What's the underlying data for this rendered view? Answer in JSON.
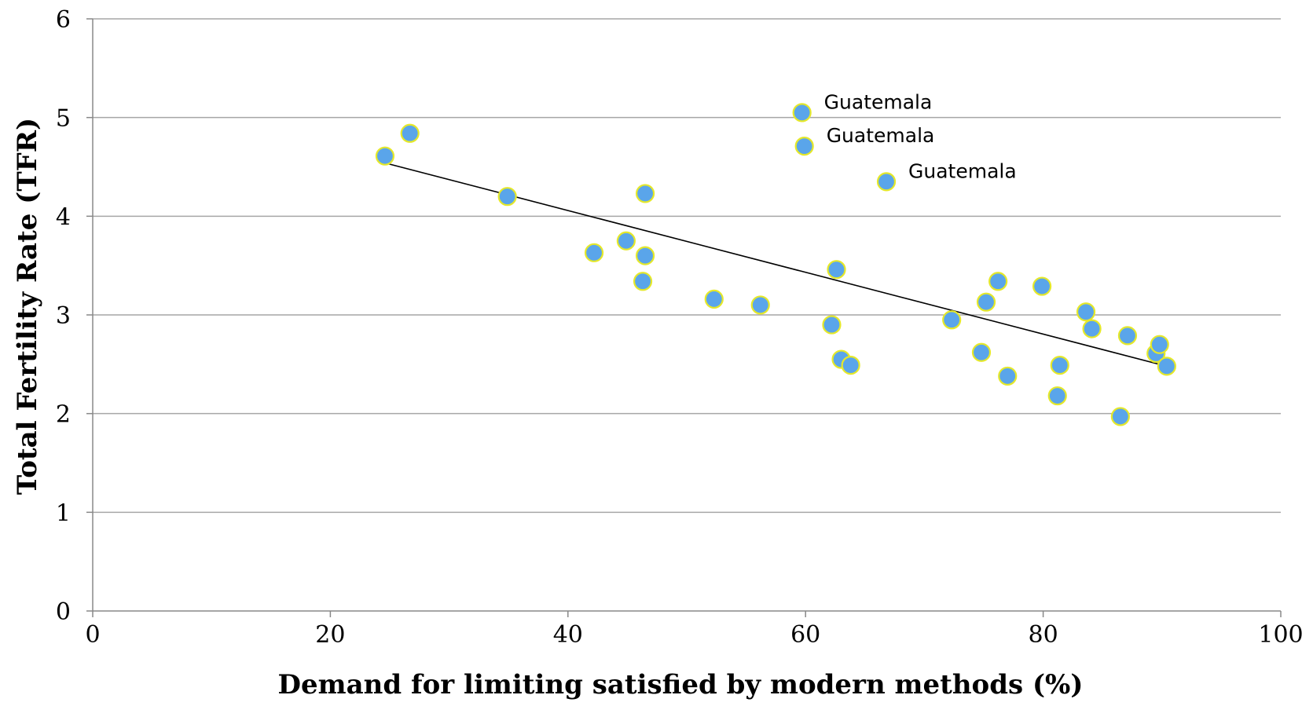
{
  "chart_data": {
    "type": "scatter",
    "xlabel": "Demand for limiting satisfied by modern methods (%)",
    "ylabel": "Total Fertility Rate (TFR)",
    "xlim": [
      0,
      100
    ],
    "ylim": [
      0,
      6
    ],
    "xticks": [
      0,
      20,
      40,
      60,
      80,
      100
    ],
    "yticks": [
      0,
      1,
      2,
      3,
      4,
      5,
      6
    ],
    "grid": "horizontal",
    "colors": {
      "marker_fill": "#5aa5ea",
      "marker_edge": "#e5e82a",
      "trend": "#000000",
      "grid": "#a6a6a6"
    },
    "series": [
      {
        "points": [
          {
            "x": 24.6,
            "y": 4.61
          },
          {
            "x": 26.7,
            "y": 4.84
          },
          {
            "x": 34.9,
            "y": 4.2
          },
          {
            "x": 42.2,
            "y": 3.63
          },
          {
            "x": 44.9,
            "y": 3.75
          },
          {
            "x": 46.3,
            "y": 3.34
          },
          {
            "x": 46.5,
            "y": 4.23
          },
          {
            "x": 46.5,
            "y": 3.6
          },
          {
            "x": 52.3,
            "y": 3.16
          },
          {
            "x": 56.2,
            "y": 3.1
          },
          {
            "x": 59.7,
            "y": 5.05
          },
          {
            "x": 59.9,
            "y": 4.71
          },
          {
            "x": 62.2,
            "y": 2.9
          },
          {
            "x": 62.6,
            "y": 3.46
          },
          {
            "x": 63.0,
            "y": 2.55
          },
          {
            "x": 63.8,
            "y": 2.49
          },
          {
            "x": 66.8,
            "y": 4.35
          },
          {
            "x": 72.3,
            "y": 2.95
          },
          {
            "x": 74.8,
            "y": 2.62
          },
          {
            "x": 75.2,
            "y": 3.13
          },
          {
            "x": 76.2,
            "y": 3.34
          },
          {
            "x": 77.0,
            "y": 2.38
          },
          {
            "x": 79.9,
            "y": 3.29
          },
          {
            "x": 81.2,
            "y": 2.18
          },
          {
            "x": 81.4,
            "y": 2.49
          },
          {
            "x": 83.6,
            "y": 3.03
          },
          {
            "x": 84.1,
            "y": 2.86
          },
          {
            "x": 86.5,
            "y": 1.97
          },
          {
            "x": 87.1,
            "y": 2.79
          },
          {
            "x": 89.5,
            "y": 2.61
          },
          {
            "x": 89.8,
            "y": 2.7
          },
          {
            "x": 90.4,
            "y": 2.48
          }
        ]
      }
    ],
    "trendline": {
      "x1": 24.6,
      "y1": 4.54,
      "x2": 90.4,
      "y2": 2.48
    },
    "annotations": [
      {
        "text": "Guatemala",
        "x": 59.7,
        "y": 5.05
      },
      {
        "text": "Guatemala",
        "x": 59.9,
        "y": 4.71
      },
      {
        "text": "Guatemala",
        "x": 66.8,
        "y": 4.35
      }
    ]
  }
}
